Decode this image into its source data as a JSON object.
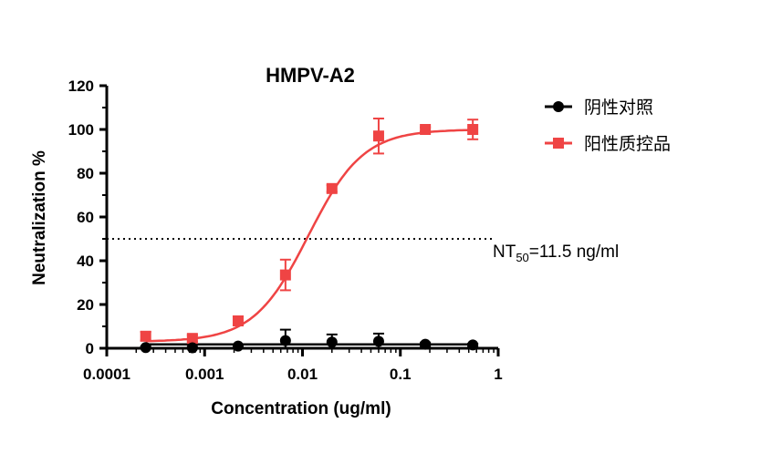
{
  "chart_data": {
    "type": "scatter",
    "title": "HMPV-A2",
    "xlabel": "Concentration (ug/ml)",
    "ylabel": "Neutralization %",
    "x_scale": "log",
    "xlim": [
      0.0001,
      1
    ],
    "ylim": [
      0,
      120
    ],
    "x_ticks": [
      "0.0001",
      "0.001",
      "0.01",
      "0.1",
      "1"
    ],
    "y_ticks": [
      "0",
      "20",
      "40",
      "60",
      "80",
      "100",
      "120"
    ],
    "grid": false,
    "legend_position": "top-right",
    "series": [
      {
        "name": "阴性对照",
        "color": "#000000",
        "marker": "circle",
        "x": [
          0.00025,
          0.00075,
          0.0022,
          0.0067,
          0.02,
          0.06,
          0.18,
          0.55
        ],
        "y": [
          0.3,
          0.2,
          1.0,
          3.5,
          2.8,
          3.2,
          1.8,
          1.5
        ],
        "error": [
          0.5,
          0.5,
          0.8,
          5.0,
          3.5,
          3.5,
          0.8,
          0.6
        ]
      },
      {
        "name": "阳性质控品",
        "color": "#EF4444",
        "marker": "square",
        "x": [
          0.00025,
          0.00075,
          0.0022,
          0.0067,
          0.02,
          0.06,
          0.18,
          0.55
        ],
        "y": [
          5.5,
          4.5,
          12.5,
          33.5,
          73.0,
          97.0,
          100.0,
          100.0
        ],
        "error": [
          2.0,
          1.5,
          2.0,
          7.0,
          1.5,
          8.0,
          1.0,
          4.5
        ]
      }
    ],
    "reference_line": {
      "y": 50,
      "style": "dotted"
    },
    "annotation": {
      "text_main": "NT",
      "text_sub": "50",
      "text_rest": "=11.5 ng/ml"
    }
  }
}
